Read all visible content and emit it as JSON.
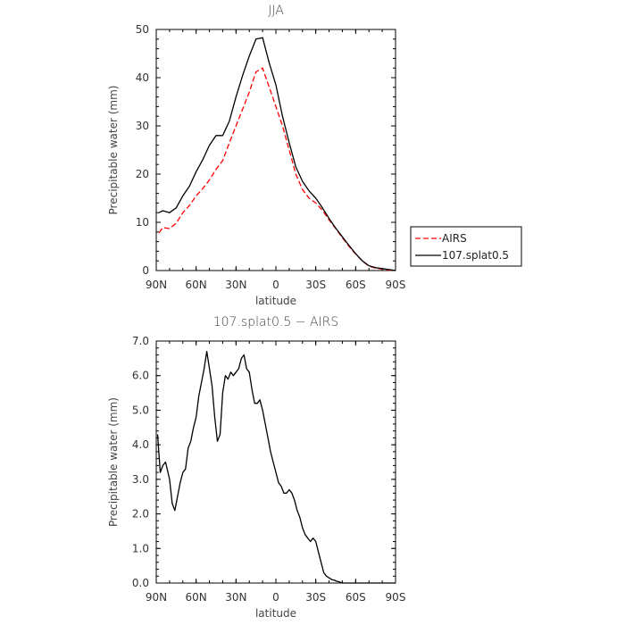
{
  "chart_data": [
    {
      "type": "line",
      "title": "JJA",
      "xlabel": "latitude",
      "ylabel": "Precipitable water (mm)",
      "xlim": [
        90,
        -90
      ],
      "ylim": [
        0,
        50
      ],
      "xticks": [
        90,
        60,
        30,
        0,
        -30,
        -60,
        -90
      ],
      "xtick_labels": [
        "90N",
        "60N",
        "30N",
        "0",
        "30S",
        "60S",
        "90S"
      ],
      "yticks": [
        0,
        10,
        20,
        30,
        40,
        50
      ],
      "ytick_labels": [
        "0",
        "10",
        "20",
        "30",
        "40",
        "50"
      ],
      "legend_position": "right",
      "series": [
        {
          "name": "AIRS",
          "color": "#ff0000",
          "dash": "dashed",
          "x": [
            88,
            85,
            80,
            75,
            70,
            65,
            60,
            55,
            50,
            45,
            40,
            35,
            30,
            25,
            20,
            15,
            10,
            5,
            0,
            -5,
            -10,
            -15,
            -20,
            -25,
            -30,
            -35,
            -40,
            -45,
            -50,
            -55,
            -60,
            -65,
            -70,
            -75,
            -80,
            -85,
            -90
          ],
          "values": [
            7.8,
            8.9,
            8.7,
            9.8,
            12.0,
            13.5,
            15.5,
            17.0,
            18.8,
            21.0,
            22.8,
            26.5,
            30.0,
            33.5,
            37.0,
            41.2,
            42.0,
            38.0,
            34.0,
            30.0,
            25.0,
            20.0,
            16.8,
            15.0,
            14.0,
            12.5,
            10.5,
            8.7,
            6.8,
            5.0,
            3.4,
            2.0,
            0.9,
            0.5,
            0.3,
            0.1,
            0.0
          ]
        },
        {
          "name": "107.splat0.5",
          "color": "#000000",
          "dash": "solid",
          "x": [
            88,
            85,
            80,
            75,
            70,
            65,
            60,
            55,
            50,
            45,
            40,
            35,
            30,
            25,
            20,
            15,
            10,
            5,
            0,
            -5,
            -10,
            -15,
            -20,
            -25,
            -30,
            -35,
            -40,
            -45,
            -50,
            -55,
            -60,
            -65,
            -70,
            -75,
            -80,
            -85,
            -90
          ],
          "values": [
            12.0,
            12.4,
            12.0,
            13.0,
            15.5,
            17.5,
            20.5,
            23.0,
            26.0,
            28.0,
            28.0,
            31.0,
            36.0,
            40.5,
            44.5,
            48.0,
            48.3,
            43.0,
            38.5,
            32.0,
            26.5,
            21.5,
            18.5,
            16.5,
            15.0,
            13.0,
            10.8,
            8.8,
            7.0,
            5.2,
            3.5,
            2.0,
            1.0,
            0.6,
            0.4,
            0.2,
            0.0
          ]
        }
      ]
    },
    {
      "type": "line",
      "title": "107.splat0.5 − AIRS",
      "xlabel": "latitude",
      "ylabel": "Precipitable water (mm)",
      "xlim": [
        90,
        -90
      ],
      "ylim": [
        0,
        7
      ],
      "xticks": [
        90,
        60,
        30,
        0,
        -30,
        -60,
        -90
      ],
      "xtick_labels": [
        "90N",
        "60N",
        "30N",
        "0",
        "30S",
        "60S",
        "90S"
      ],
      "yticks": [
        0,
        1,
        2,
        3,
        4,
        5,
        6,
        7
      ],
      "ytick_labels": [
        "0.0",
        "1.0",
        "2.0",
        "3.0",
        "4.0",
        "5.0",
        "6.0",
        "7.0"
      ],
      "series": [
        {
          "color": "#000000",
          "dash": "solid",
          "x": [
            89,
            87,
            85,
            83,
            80,
            78,
            76,
            74,
            72,
            70,
            68,
            66,
            64,
            62,
            60,
            58,
            56,
            54,
            52,
            50,
            48,
            46,
            44,
            42,
            40,
            38,
            36,
            34,
            32,
            30,
            28,
            26,
            24,
            22,
            20,
            18,
            16,
            14,
            12,
            10,
            8,
            6,
            4,
            2,
            0,
            -2,
            -4,
            -6,
            -8,
            -10,
            -12,
            -14,
            -16,
            -18,
            -20,
            -22,
            -24,
            -26,
            -28,
            -30,
            -32,
            -34,
            -36,
            -38,
            -40,
            -42,
            -44,
            -46,
            -48,
            -50,
            -52,
            -54,
            -56,
            -58,
            -60,
            -62,
            -64,
            -66,
            -68,
            -70,
            -72,
            -74,
            -76,
            -78,
            -80,
            -82,
            -84,
            -86,
            -88,
            -90
          ],
          "values": [
            4.3,
            3.2,
            3.4,
            3.5,
            3.0,
            2.3,
            2.1,
            2.5,
            2.9,
            3.2,
            3.3,
            3.9,
            4.1,
            4.5,
            4.8,
            5.4,
            5.8,
            6.2,
            6.7,
            6.2,
            5.7,
            4.8,
            4.1,
            4.3,
            5.5,
            6.0,
            5.9,
            6.1,
            6.0,
            6.1,
            6.2,
            6.5,
            6.6,
            6.2,
            6.1,
            5.6,
            5.2,
            5.2,
            5.3,
            5.0,
            4.6,
            4.2,
            3.8,
            3.5,
            3.2,
            2.9,
            2.8,
            2.6,
            2.6,
            2.7,
            2.6,
            2.4,
            2.1,
            1.9,
            1.6,
            1.4,
            1.3,
            1.2,
            1.3,
            1.2,
            0.9,
            0.6,
            0.3,
            0.2,
            0.15,
            0.1,
            0.08,
            0.05,
            0.03,
            0.0,
            0.0,
            0.0,
            0.0,
            0.0,
            0.0,
            0.0,
            0.0,
            0.0,
            0.0,
            0.0,
            0.0,
            0.0,
            0.0,
            0.0,
            0.0,
            0.0,
            0.0,
            0.0,
            0.0,
            0.0
          ]
        }
      ]
    }
  ]
}
